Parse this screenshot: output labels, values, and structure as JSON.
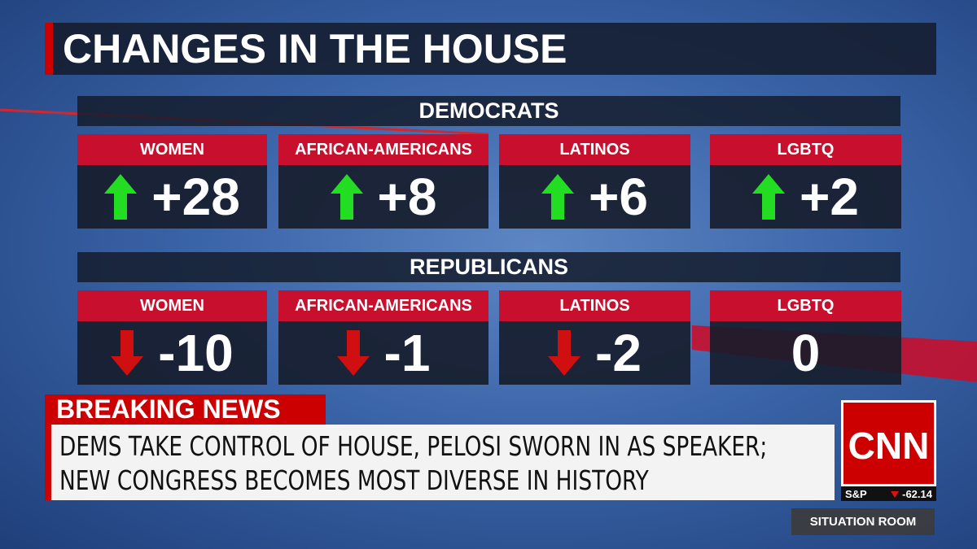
{
  "title": "CHANGES IN THE HOUSE",
  "groups": [
    {
      "name": "DEMOCRATS",
      "items": [
        {
          "label": "WOMEN",
          "value": "+28",
          "direction": "up"
        },
        {
          "label": "AFRICAN-AMERICANS",
          "value": "+8",
          "direction": "up"
        },
        {
          "label": "LATINOS",
          "value": "+6",
          "direction": "up"
        },
        {
          "label": "LGBTQ",
          "value": "+2",
          "direction": "up"
        }
      ]
    },
    {
      "name": "REPUBLICANS",
      "items": [
        {
          "label": "WOMEN",
          "value": "-10",
          "direction": "down"
        },
        {
          "label": "AFRICAN-AMERICANS",
          "value": "-1",
          "direction": "down"
        },
        {
          "label": "LATINOS",
          "value": "-2",
          "direction": "down"
        },
        {
          "label": "LGBTQ",
          "value": "0"
        }
      ]
    }
  ],
  "breaking": {
    "label": "BREAKING NEWS",
    "headline": [
      "DEMS TAKE CONTROL OF HOUSE, PELOSI SWORN IN AS SPEAKER;",
      "NEW CONGRESS BECOMES MOST DIVERSE IN HISTORY"
    ]
  },
  "logo": "CNN",
  "ticker": {
    "label": "S&P",
    "value": "-62.14",
    "direction": "down"
  },
  "show": "SITUATION ROOM"
}
